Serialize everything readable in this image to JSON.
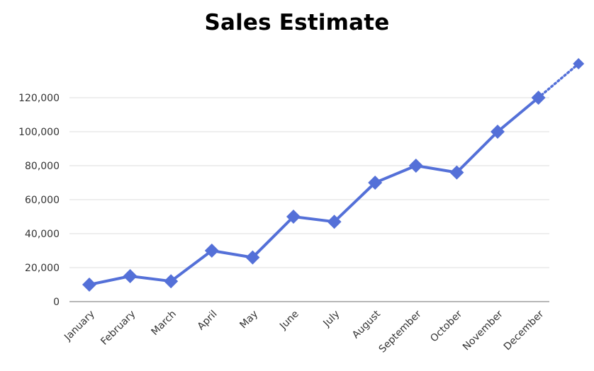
{
  "chart_data": {
    "type": "line",
    "title": "Sales Estimate",
    "xlabel": "",
    "ylabel": "",
    "categories": [
      "January",
      "February",
      "March",
      "April",
      "May",
      "June",
      "July",
      "August",
      "September",
      "October",
      "November",
      "December"
    ],
    "y_tick_labels": [
      "0",
      "20,000",
      "40,000",
      "60,000",
      "80,000",
      "100,000",
      "120,000"
    ],
    "y_ticks": [
      0,
      20000,
      40000,
      60000,
      80000,
      100000,
      120000
    ],
    "ylim": [
      0,
      120000
    ],
    "grid": true,
    "legend": "none",
    "series": [
      {
        "values": [
          10000,
          15000,
          12000,
          30000,
          26000,
          50000,
          47000,
          70000,
          80000,
          76000,
          100000,
          120000
        ],
        "color": "#5470d8",
        "marker": "diamond",
        "line": "solid"
      }
    ],
    "projection": {
      "values": [
        120000,
        140000
      ],
      "line": "dotted",
      "color": "#5470d8",
      "marker": "diamond"
    }
  }
}
